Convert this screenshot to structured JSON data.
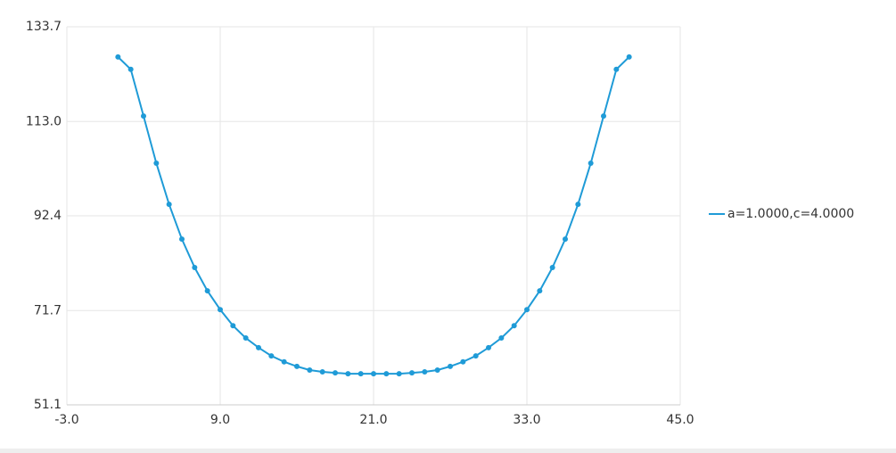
{
  "chart_data": {
    "type": "line",
    "x": [
      1,
      2,
      3,
      4,
      5,
      6,
      7,
      8,
      9,
      10,
      11,
      12,
      13,
      14,
      15,
      16,
      17,
      18,
      19,
      20,
      21,
      22,
      23,
      24,
      25,
      26,
      27,
      28,
      29,
      30,
      31,
      32,
      33,
      34,
      35,
      36,
      37,
      38,
      39,
      40,
      41
    ],
    "series": [
      {
        "name": "a=1.0000,c=4.0000",
        "color": "#1f9bd7",
        "values": [
          127.1,
          124.4,
          114.2,
          103.9,
          94.9,
          87.3,
          81.1,
          76.0,
          71.9,
          68.4,
          65.7,
          63.6,
          61.8,
          60.5,
          59.5,
          58.7,
          58.3,
          58.1,
          57.9,
          57.9,
          57.9,
          57.9,
          57.9,
          58.1,
          58.3,
          58.7,
          59.5,
          60.5,
          61.8,
          63.6,
          65.7,
          68.4,
          71.9,
          76.0,
          81.1,
          87.3,
          94.9,
          103.9,
          114.2,
          124.4,
          127.1
        ]
      }
    ],
    "xlim": [
      -3,
      45
    ],
    "xticks": [
      {
        "value": -3,
        "label": "-3.0"
      },
      {
        "value": 9,
        "label": "9.0"
      },
      {
        "value": 21,
        "label": "21.0"
      },
      {
        "value": 33,
        "label": "33.0"
      },
      {
        "value": 45,
        "label": "45.0"
      }
    ],
    "ylim": [
      51.1,
      133.7
    ],
    "yticks": [
      51.1,
      71.7,
      92.4,
      {
        "value": 113,
        "label": "113.0"
      },
      133.7
    ],
    "grid": true,
    "legend": "right"
  }
}
